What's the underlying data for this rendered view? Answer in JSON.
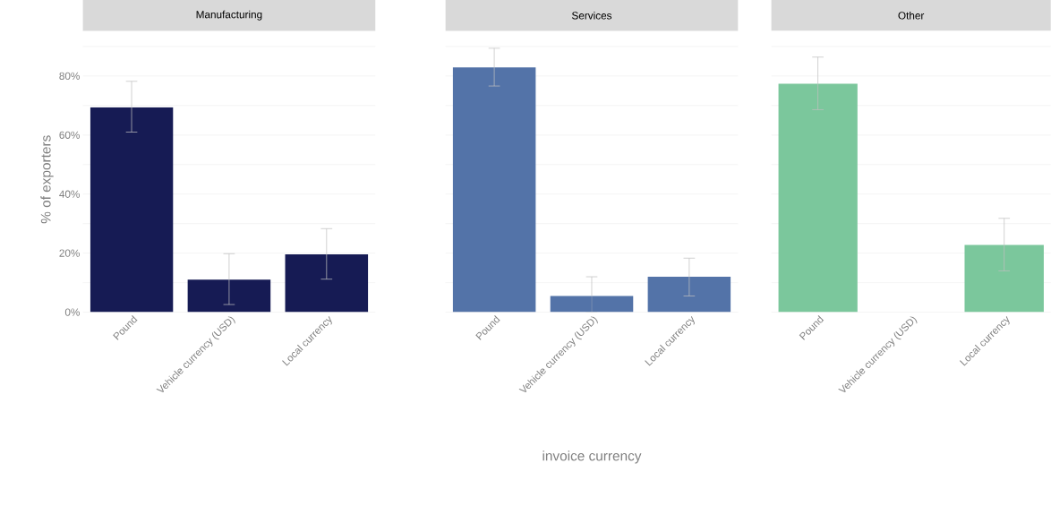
{
  "chart_data": [
    {
      "type": "bar",
      "title": "Manufacturing",
      "ylabel": "% of exporters",
      "categories": [
        "Pound",
        "Vehicle currency (USD)",
        "Local currency"
      ],
      "series": [
        {
          "color": "#161b54",
          "values": [
            69.4,
            11.0,
            19.6
          ],
          "errors": [
            [
              61.0,
              78.2
            ],
            [
              2.6,
              19.8
            ],
            [
              11.2,
              28.3
            ]
          ]
        }
      ],
      "ylim": [
        0,
        90
      ],
      "yticks": [
        {
          "value": 0,
          "label": "0%"
        },
        {
          "value": 10,
          "label": null
        },
        {
          "value": 20,
          "label": "20%"
        },
        {
          "value": 30,
          "label": null
        },
        {
          "value": 40,
          "label": "40%"
        },
        {
          "value": 50,
          "label": null
        },
        {
          "value": 60,
          "label": "60%"
        },
        {
          "value": 70,
          "label": null
        },
        {
          "value": 80,
          "label": "80%"
        },
        {
          "value": 90,
          "label": null
        }
      ],
      "grid": "y"
    },
    {
      "type": "bar",
      "title": "Services",
      "xlabel": "invoice currency",
      "categories": [
        "Pound",
        "Vehicle currency (USD)",
        "Local currency"
      ],
      "series": [
        {
          "color": "#5373a8",
          "values": [
            82.9,
            5.5,
            12.0
          ],
          "errors": [
            [
              76.6,
              89.4
            ],
            [
              0,
              12.0
            ],
            [
              5.5,
              18.3
            ]
          ]
        }
      ],
      "ylim": [
        0,
        90
      ],
      "yticks": [
        0,
        10,
        20,
        30,
        40,
        50,
        60,
        70,
        80,
        90
      ],
      "grid": "y",
      "tick_labels": "x"
    },
    {
      "type": "bar",
      "title": "Other",
      "categories": [
        "Pound",
        "Vehicle currency (USD)",
        "Local currency"
      ],
      "series": [
        {
          "color": "#7bc79c",
          "values": [
            77.4,
            null,
            22.8
          ],
          "errors": [
            [
              68.6,
              86.4
            ],
            null,
            [
              14.0,
              31.8
            ]
          ]
        }
      ],
      "ylim": [
        0,
        90
      ],
      "yticks": [
        0,
        10,
        20,
        30,
        40,
        50,
        60,
        70,
        80,
        90
      ],
      "grid": "y",
      "tick_labels": "x"
    }
  ]
}
